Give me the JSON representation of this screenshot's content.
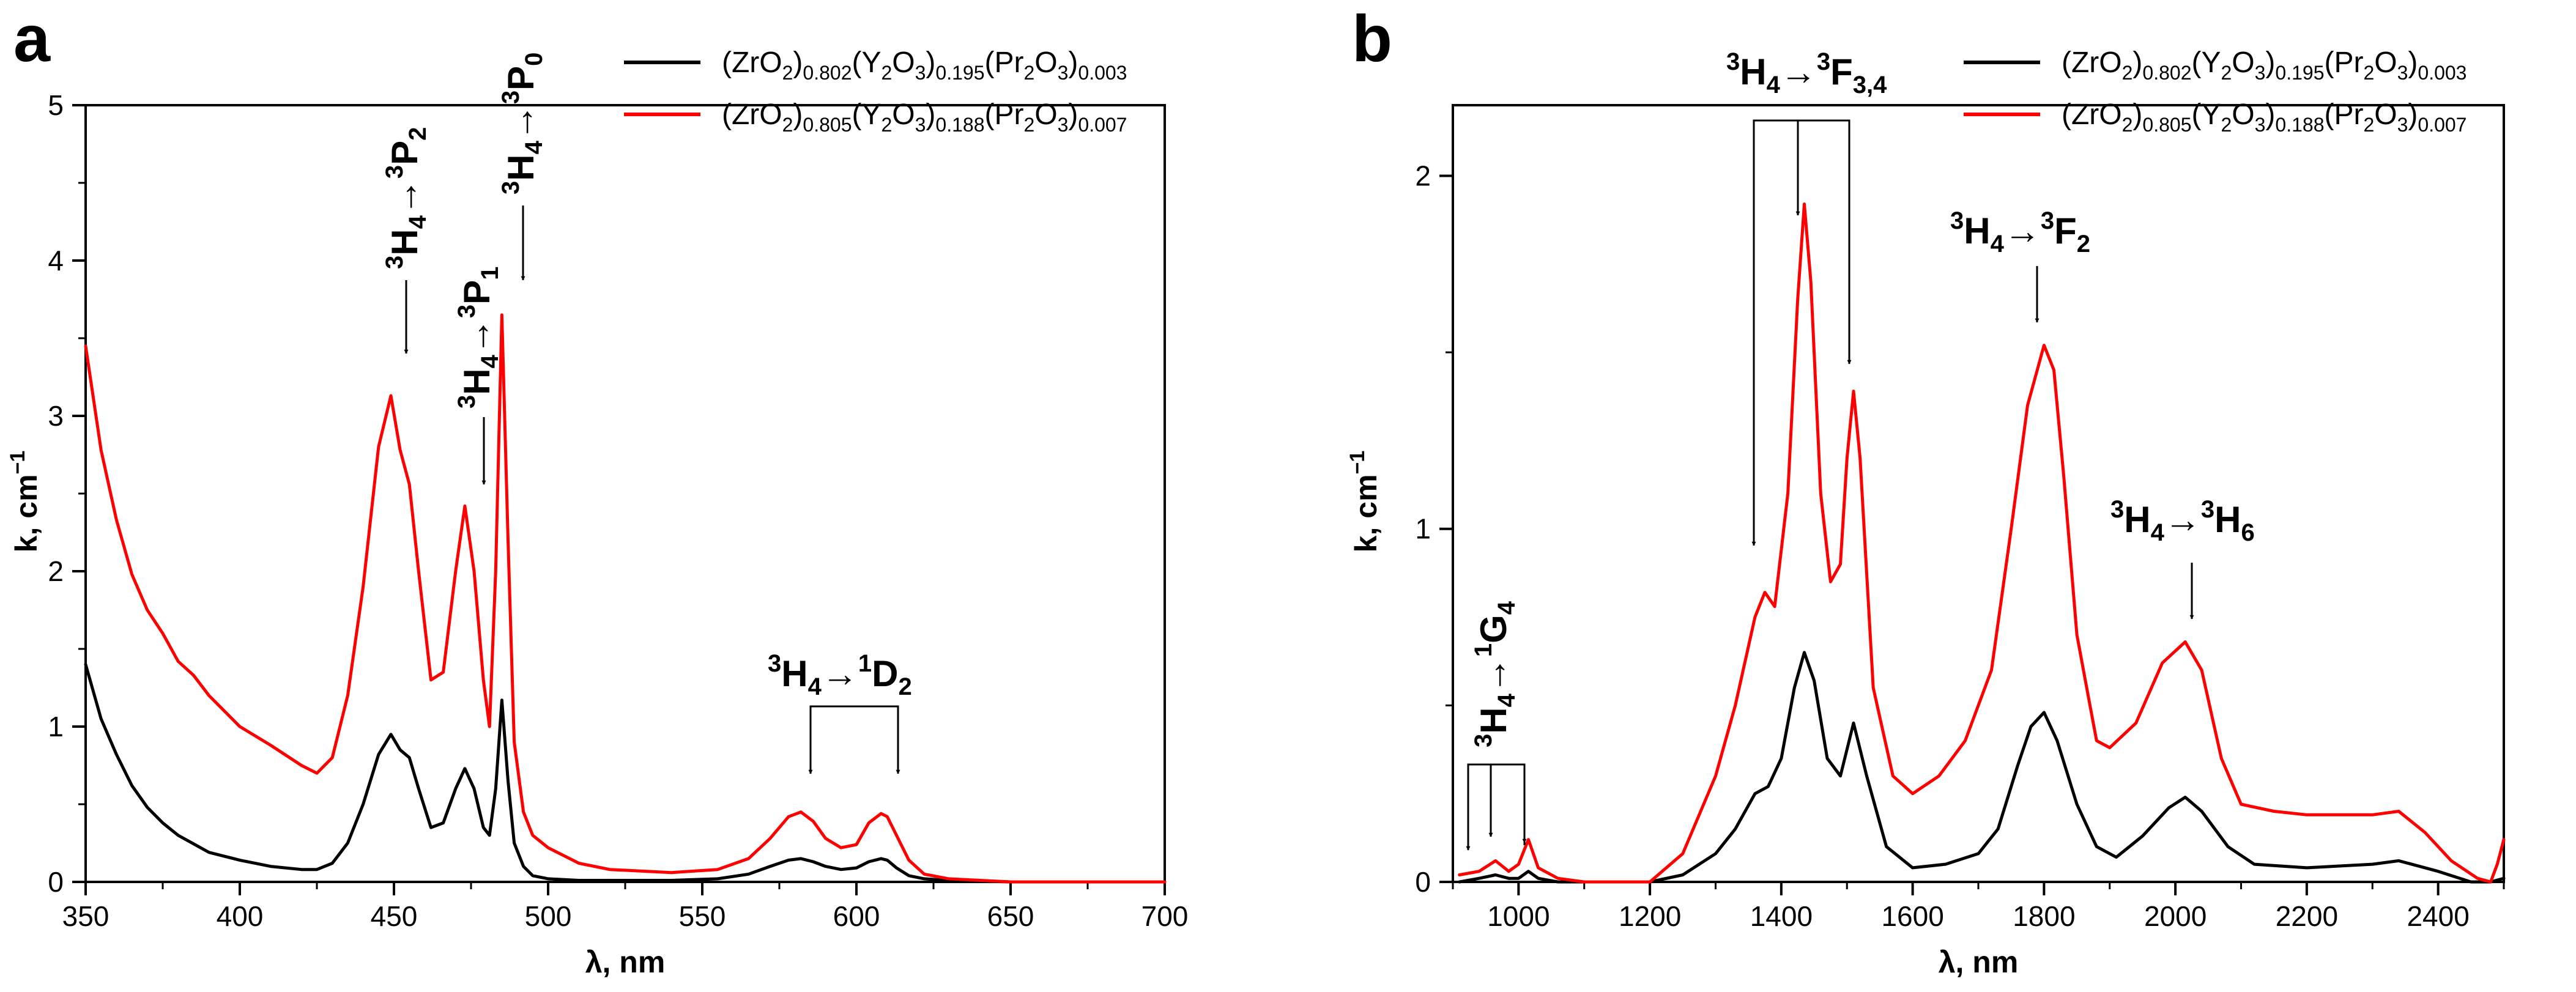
{
  "chart_data": [
    {
      "type": "line",
      "panel_label": "a",
      "xlabel": "λ, nm",
      "ylabel": "k, cm",
      "ylabel_sup": "−1",
      "xlim": [
        350,
        700
      ],
      "ylim": [
        0,
        5
      ],
      "xticks": [
        "350",
        "400",
        "450",
        "500",
        "550",
        "600",
        "650",
        "700"
      ],
      "yticks": [
        "0",
        "1",
        "2",
        "3",
        "4",
        "5"
      ],
      "legend": [
        {
          "name": "(ZrO2)0.802(Y2O3)0.195(Pr2O3)0.003",
          "color": "#000000"
        },
        {
          "name": "(ZrO2)0.805(Y2O3)0.188(Pr2O3)0.007",
          "color": "#ff0000"
        }
      ],
      "series": [
        {
          "name": "(ZrO2)0.802(Y2O3)0.195(Pr2O3)0.003",
          "color": "#000000",
          "x": [
            350,
            355,
            360,
            365,
            370,
            375,
            380,
            390,
            400,
            410,
            420,
            425,
            430,
            435,
            440,
            445,
            449,
            452,
            455,
            458,
            462,
            466,
            470,
            473,
            476,
            479,
            481,
            483,
            485,
            487,
            489,
            492,
            495,
            500,
            510,
            520,
            540,
            555,
            565,
            572,
            578,
            582,
            586,
            590,
            595,
            600,
            604,
            608,
            610,
            613,
            617,
            622,
            630,
            650,
            680,
            700
          ],
          "y": [
            1.4,
            1.05,
            0.82,
            0.62,
            0.48,
            0.38,
            0.3,
            0.19,
            0.14,
            0.1,
            0.08,
            0.08,
            0.12,
            0.25,
            0.5,
            0.82,
            0.95,
            0.85,
            0.8,
            0.6,
            0.35,
            0.38,
            0.6,
            0.73,
            0.6,
            0.35,
            0.3,
            0.6,
            1.17,
            0.65,
            0.25,
            0.1,
            0.04,
            0.02,
            0.01,
            0.01,
            0.01,
            0.02,
            0.05,
            0.1,
            0.14,
            0.15,
            0.13,
            0.1,
            0.08,
            0.09,
            0.13,
            0.15,
            0.14,
            0.09,
            0.04,
            0.02,
            0.01,
            0.0,
            0.0,
            0.0
          ]
        },
        {
          "name": "(ZrO2)0.805(Y2O3)0.188(Pr2O3)0.007",
          "color": "#ff0000",
          "x": [
            350,
            355,
            360,
            365,
            370,
            375,
            380,
            385,
            390,
            400,
            410,
            420,
            425,
            430,
            435,
            440,
            445,
            449,
            452,
            455,
            458,
            462,
            466,
            470,
            473,
            476,
            479,
            481,
            483,
            485,
            487,
            489,
            492,
            495,
            500,
            510,
            520,
            540,
            555,
            565,
            572,
            578,
            582,
            586,
            590,
            595,
            600,
            604,
            608,
            610,
            613,
            617,
            622,
            630,
            650,
            680,
            700
          ],
          "y": [
            3.45,
            2.78,
            2.33,
            1.98,
            1.75,
            1.6,
            1.42,
            1.33,
            1.2,
            1.0,
            0.88,
            0.75,
            0.7,
            0.8,
            1.2,
            1.9,
            2.8,
            3.13,
            2.78,
            2.56,
            2.0,
            1.3,
            1.35,
            2.0,
            2.42,
            2.0,
            1.3,
            1.0,
            2.0,
            3.65,
            2.2,
            0.9,
            0.45,
            0.3,
            0.22,
            0.12,
            0.08,
            0.06,
            0.08,
            0.15,
            0.28,
            0.42,
            0.45,
            0.39,
            0.28,
            0.22,
            0.24,
            0.38,
            0.44,
            0.42,
            0.3,
            0.14,
            0.05,
            0.02,
            0.0,
            0.0,
            0.0
          ]
        }
      ],
      "annotations": [
        {
          "base": "3",
          "main": "H",
          "sub": "4",
          "arrow": "→",
          "base2": "3",
          "main2": "P",
          "sub2": "2",
          "position": "above 449 nm peak",
          "orientation": "rotated"
        },
        {
          "base": "3",
          "main": "H",
          "sub": "4",
          "arrow": "→",
          "base2": "3",
          "main2": "P",
          "sub2": "1",
          "position": "above 473 nm peak",
          "orientation": "rotated"
        },
        {
          "base": "3",
          "main": "H",
          "sub": "4",
          "arrow": "→",
          "base2": "3",
          "main2": "P",
          "sub2": "0",
          "position": "above 485 nm peak",
          "orientation": "rotated"
        },
        {
          "base": "3",
          "main": "H",
          "sub": "4",
          "arrow": "→",
          "base2": "1",
          "main2": "D",
          "sub2": "2",
          "position": "above 582 and 610 nm peaks",
          "orientation": "horizontal"
        }
      ]
    },
    {
      "type": "line",
      "panel_label": "b",
      "xlabel": "λ, nm",
      "ylabel": "k, cm",
      "ylabel_sup": "−1",
      "xlim": [
        900,
        2500
      ],
      "ylim": [
        0,
        2.2
      ],
      "xticks": [
        "1000",
        "1200",
        "1400",
        "1600",
        "1800",
        "2000",
        "2200",
        "2400"
      ],
      "yticks": [
        "0",
        "1",
        "2"
      ],
      "legend": [
        {
          "name": "(ZrO2)0.802(Y2O3)0.195(Pr2O3)0.003",
          "color": "#000000"
        },
        {
          "name": "(ZrO2)0.805(Y2O3)0.188(Pr2O3)0.007",
          "color": "#ff0000"
        }
      ],
      "series": [
        {
          "name": "(ZrO2)0.802(Y2O3)0.195(Pr2O3)0.003",
          "color": "#000000",
          "x": [
            910,
            940,
            965,
            985,
            1000,
            1015,
            1030,
            1060,
            1100,
            1150,
            1200,
            1250,
            1300,
            1330,
            1360,
            1380,
            1400,
            1420,
            1435,
            1450,
            1470,
            1490,
            1510,
            1530,
            1560,
            1600,
            1650,
            1700,
            1730,
            1760,
            1780,
            1800,
            1820,
            1850,
            1880,
            1910,
            1950,
            1990,
            2015,
            2040,
            2080,
            2120,
            2200,
            2300,
            2340,
            2400,
            2450,
            2480,
            2500
          ],
          "y": [
            0.0,
            0.01,
            0.02,
            0.01,
            0.01,
            0.03,
            0.01,
            0.0,
            0.0,
            0.0,
            0.0,
            0.02,
            0.08,
            0.15,
            0.25,
            0.27,
            0.35,
            0.55,
            0.65,
            0.57,
            0.35,
            0.3,
            0.45,
            0.3,
            0.1,
            0.04,
            0.05,
            0.08,
            0.15,
            0.33,
            0.44,
            0.48,
            0.4,
            0.22,
            0.1,
            0.07,
            0.13,
            0.21,
            0.24,
            0.2,
            0.1,
            0.05,
            0.04,
            0.05,
            0.06,
            0.03,
            0.0,
            0.0,
            0.01
          ]
        },
        {
          "name": "(ZrO2)0.805(Y2O3)0.188(Pr2O3)0.007",
          "color": "#ff0000",
          "x": [
            910,
            940,
            965,
            985,
            1000,
            1015,
            1030,
            1060,
            1100,
            1150,
            1200,
            1250,
            1300,
            1330,
            1360,
            1375,
            1390,
            1410,
            1425,
            1435,
            1445,
            1460,
            1475,
            1490,
            1500,
            1510,
            1520,
            1540,
            1570,
            1600,
            1640,
            1680,
            1720,
            1750,
            1775,
            1800,
            1815,
            1830,
            1850,
            1870,
            1880,
            1900,
            1940,
            1980,
            2015,
            2040,
            2070,
            2100,
            2150,
            2200,
            2300,
            2340,
            2380,
            2420,
            2460,
            2480,
            2490,
            2500
          ],
          "y": [
            0.02,
            0.03,
            0.06,
            0.03,
            0.05,
            0.12,
            0.04,
            0.01,
            0.0,
            0.0,
            0.0,
            0.08,
            0.3,
            0.5,
            0.75,
            0.82,
            0.78,
            1.1,
            1.65,
            1.92,
            1.7,
            1.1,
            0.85,
            0.9,
            1.2,
            1.39,
            1.2,
            0.55,
            0.3,
            0.25,
            0.3,
            0.4,
            0.6,
            1.0,
            1.35,
            1.52,
            1.45,
            1.15,
            0.7,
            0.5,
            0.4,
            0.38,
            0.45,
            0.62,
            0.68,
            0.6,
            0.35,
            0.22,
            0.2,
            0.19,
            0.19,
            0.2,
            0.14,
            0.06,
            0.01,
            0.0,
            0.05,
            0.12
          ]
        }
      ],
      "annotations": [
        {
          "base": "3",
          "main": "H",
          "sub": "4",
          "arrow": "→",
          "base2": "1",
          "main2": "G",
          "sub2": "4",
          "position": "above 940-1015 nm peaks",
          "orientation": "rotated"
        },
        {
          "base": "3",
          "main": "H",
          "sub": "4",
          "arrow": "→",
          "base2": "3",
          "main2": "F",
          "sub2": "3,4",
          "position": "above 1370-1510 nm peaks",
          "orientation": "horizontal"
        },
        {
          "base": "3",
          "main": "H",
          "sub": "4",
          "arrow": "→",
          "base2": "3",
          "main2": "F",
          "sub2": "2",
          "position": "above 1800 nm peak",
          "orientation": "horizontal"
        },
        {
          "base": "3",
          "main": "H",
          "sub": "4",
          "arrow": "→",
          "base2": "3",
          "main2": "H",
          "sub2": "6",
          "position": "above 2020 nm peak",
          "orientation": "horizontal"
        }
      ]
    }
  ]
}
